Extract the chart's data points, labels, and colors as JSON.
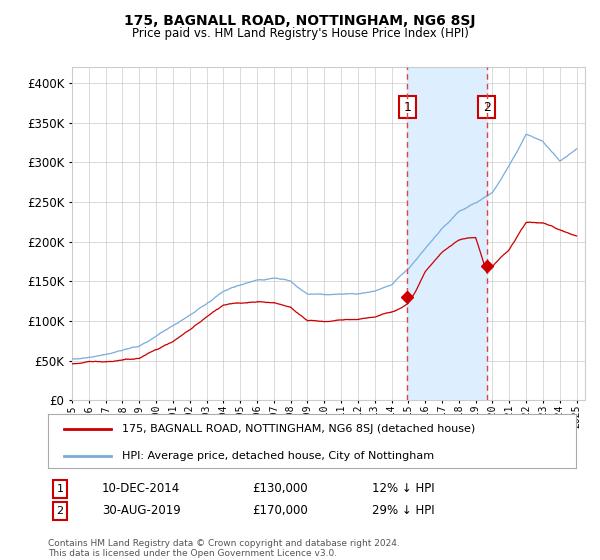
{
  "title": "175, BAGNALL ROAD, NOTTINGHAM, NG6 8SJ",
  "subtitle": "Price paid vs. HM Land Registry's House Price Index (HPI)",
  "legend_line1": "175, BAGNALL ROAD, NOTTINGHAM, NG6 8SJ (detached house)",
  "legend_line2": "HPI: Average price, detached house, City of Nottingham",
  "annotation1_date": "10-DEC-2014",
  "annotation1_price": 130000,
  "annotation2_date": "30-AUG-2019",
  "annotation2_price": 170000,
  "red_line_color": "#cc0000",
  "blue_line_color": "#7aaddd",
  "shade_color": "#ddeeff",
  "dashed_color": "#dd4444",
  "background_color": "#ffffff",
  "grid_color": "#cccccc",
  "annotation_box_color": "#cc0000",
  "ylim": [
    0,
    420000
  ],
  "ylabel_ticks": [
    0,
    50000,
    100000,
    150000,
    200000,
    250000,
    300000,
    350000,
    400000
  ],
  "sale1_year": 2014.94,
  "sale2_year": 2019.66,
  "footnote": "Contains HM Land Registry data © Crown copyright and database right 2024.\nThis data is licensed under the Open Government Licence v3.0."
}
